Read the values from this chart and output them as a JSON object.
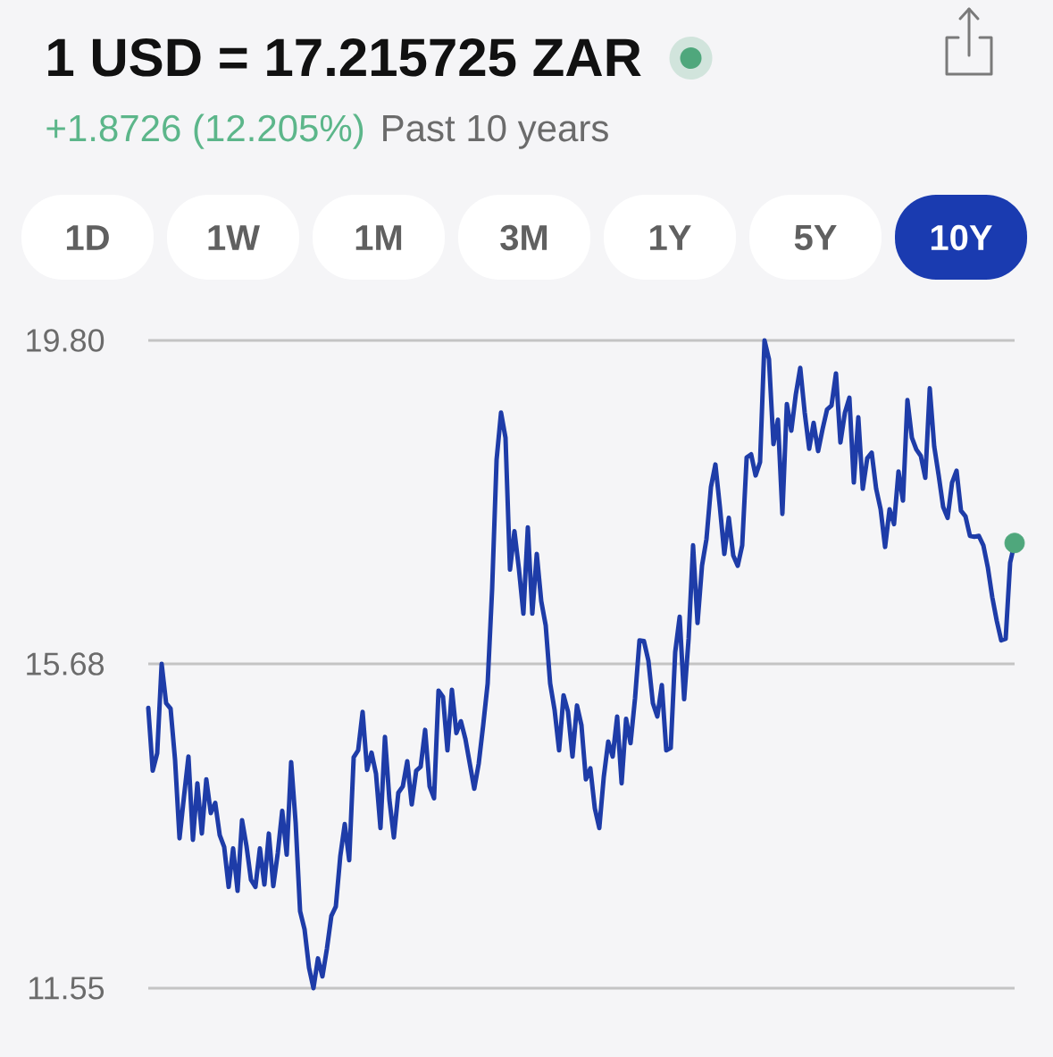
{
  "chart_data": {
    "type": "line",
    "title": "1 USD = 17.215725 ZAR",
    "subtitle": "Past 10 years",
    "annotations": [
      "+1.8726 (12.205%)",
      "1D",
      "1W",
      "1M",
      "3M",
      "1Y",
      "5Y",
      "10Y"
    ],
    "categories": [
      null,
      null,
      null,
      null,
      null,
      null,
      null,
      null,
      null,
      null,
      null,
      null,
      null,
      null,
      null,
      null,
      null,
      null,
      null,
      null,
      null,
      null,
      null,
      null,
      null,
      null,
      null,
      null,
      null,
      null,
      null,
      null,
      null,
      null,
      null,
      null,
      null,
      null,
      null,
      null,
      null,
      null,
      null,
      null,
      null,
      null,
      null,
      null,
      null,
      null,
      null,
      null,
      null,
      null,
      null,
      null,
      null,
      null,
      null,
      null,
      null,
      null,
      null,
      null,
      null,
      null,
      null,
      null,
      null,
      null,
      null,
      null,
      null,
      null,
      null,
      null,
      null,
      null,
      null,
      null,
      null,
      null,
      null,
      null,
      null,
      null,
      null,
      null,
      null,
      null,
      null,
      null,
      null,
      null,
      null,
      null,
      null,
      null,
      null,
      null,
      null,
      null,
      null,
      null,
      null,
      null,
      null,
      null,
      null,
      null,
      null,
      null,
      null,
      null,
      null,
      null,
      null,
      null,
      null,
      null,
      null,
      null,
      null,
      null,
      null,
      null,
      null,
      null,
      null,
      null,
      null,
      null,
      null,
      null,
      null,
      null,
      null,
      null,
      null,
      null,
      null,
      null,
      null,
      null,
      null,
      null,
      null,
      null,
      null,
      null,
      null,
      null,
      null,
      null,
      null,
      null,
      null,
      null,
      null,
      null,
      null,
      null,
      null,
      null,
      null,
      null,
      null,
      null,
      null,
      null,
      null,
      null,
      null,
      null,
      null,
      null,
      null,
      null,
      null,
      null,
      null,
      null,
      null,
      null,
      null,
      null,
      null,
      null,
      null,
      null,
      null,
      null,
      null,
      null,
      null
    ],
    "ylim": [
      11.55,
      19.8
    ],
    "yticks": [
      11.55,
      15.68,
      {
        "value": 19.8,
        "label": "19.80"
      }
    ],
    "grid": "y",
    "series": [
      {
        "type": "scatter",
        "marker": "circle",
        "color": "#4fa77c",
        "values": [
          null,
          null,
          null,
          null,
          null,
          null,
          null,
          null,
          null,
          null,
          null,
          null,
          null,
          null,
          null,
          null,
          null,
          null,
          null,
          null,
          null,
          null,
          null,
          null,
          null,
          null,
          null,
          null,
          null,
          null,
          null,
          null,
          null,
          null,
          null,
          null,
          null,
          null,
          null,
          null,
          null,
          null,
          null,
          null,
          null,
          null,
          null,
          null,
          null,
          null,
          null,
          null,
          null,
          null,
          null,
          null,
          null,
          null,
          null,
          null,
          null,
          null,
          null,
          null,
          null,
          null,
          null,
          null,
          null,
          null,
          null,
          null,
          null,
          null,
          null,
          null,
          null,
          null,
          null,
          null,
          null,
          null,
          null,
          null,
          null,
          null,
          null,
          null,
          null,
          null,
          null,
          null,
          null,
          null,
          null,
          null,
          null,
          null,
          null,
          null,
          null,
          null,
          null,
          null,
          null,
          null,
          null,
          null,
          null,
          null,
          null,
          null,
          null,
          null,
          null,
          null,
          null,
          null,
          null,
          null,
          null,
          null,
          null,
          null,
          null,
          null,
          null,
          null,
          null,
          null,
          null,
          null,
          null,
          null,
          null,
          null,
          null,
          null,
          null,
          null,
          null,
          null,
          null,
          null,
          null,
          null,
          null,
          null,
          null,
          null,
          null,
          null,
          null,
          null,
          null,
          null,
          null,
          null,
          null,
          null,
          null,
          null,
          null,
          null,
          null,
          null,
          null,
          null,
          null,
          null,
          null,
          null,
          null,
          null,
          null,
          null,
          null,
          null,
          null,
          null,
          null,
          null,
          null,
          null,
          null,
          null,
          null,
          null,
          null,
          null,
          null,
          null,
          null,
          null,
          17.22
        ]
      },
      {
        "color": "#1e3ca8",
        "values": [
          15.12,
          14.32,
          14.54,
          15.68,
          15.18,
          15.11,
          14.46,
          13.46,
          13.99,
          14.5,
          13.44,
          14.16,
          13.52,
          14.21,
          13.78,
          13.91,
          13.5,
          13.35,
          12.84,
          13.33,
          12.79,
          13.69,
          13.36,
          12.93,
          12.84,
          13.33,
          12.87,
          13.52,
          12.85,
          13.27,
          13.81,
          13.25,
          14.43,
          13.66,
          12.53,
          12.3,
          11.81,
          11.55,
          11.93,
          11.7,
          12.05,
          12.47,
          12.59,
          13.23,
          13.64,
          13.18,
          14.49,
          14.58,
          15.07,
          14.33,
          14.55,
          14.28,
          13.59,
          14.75,
          13.95,
          13.47,
          14.04,
          14.12,
          14.44,
          13.89,
          14.32,
          14.37,
          14.84,
          14.12,
          13.97,
          15.34,
          15.26,
          14.58,
          15.35,
          14.8,
          14.95,
          14.73,
          14.41,
          14.09,
          14.41,
          14.9,
          15.43,
          16.63,
          18.28,
          18.88,
          18.56,
          16.88,
          17.37,
          16.89,
          16.32,
          17.42,
          16.32,
          17.08,
          16.48,
          16.17,
          15.43,
          15.09,
          14.58,
          15.28,
          15.07,
          14.5,
          15.15,
          14.9,
          14.21,
          14.35,
          13.84,
          13.59,
          14.24,
          14.69,
          14.5,
          15.01,
          14.16,
          14.98,
          14.67,
          15.24,
          15.98,
          15.97,
          15.72,
          15.18,
          15.01,
          15.41,
          14.58,
          14.61,
          15.83,
          16.28,
          15.23,
          16.0,
          17.19,
          16.2,
          16.93,
          17.27,
          17.93,
          18.22,
          17.68,
          17.08,
          17.54,
          17.06,
          16.93,
          17.19,
          18.31,
          18.35,
          18.08,
          18.25,
          19.8,
          19.56,
          18.48,
          18.79,
          17.59,
          18.99,
          18.65,
          19.11,
          19.45,
          18.88,
          18.42,
          18.75,
          18.39,
          18.67,
          18.92,
          18.97,
          19.38,
          18.5,
          18.88,
          19.07,
          17.99,
          18.82,
          17.91,
          18.3,
          18.37,
          17.91,
          17.65,
          17.17,
          17.65,
          17.46,
          18.13,
          17.76,
          19.04,
          18.56,
          18.41,
          18.33,
          18.05,
          19.19,
          18.45,
          18.08,
          17.68,
          17.54,
          17.99,
          18.14,
          17.63,
          17.56,
          17.31,
          17.3,
          17.31,
          17.19,
          16.91,
          16.53,
          16.23,
          15.98,
          16.0,
          16.97,
          17.22
        ]
      }
    ]
  }
}
